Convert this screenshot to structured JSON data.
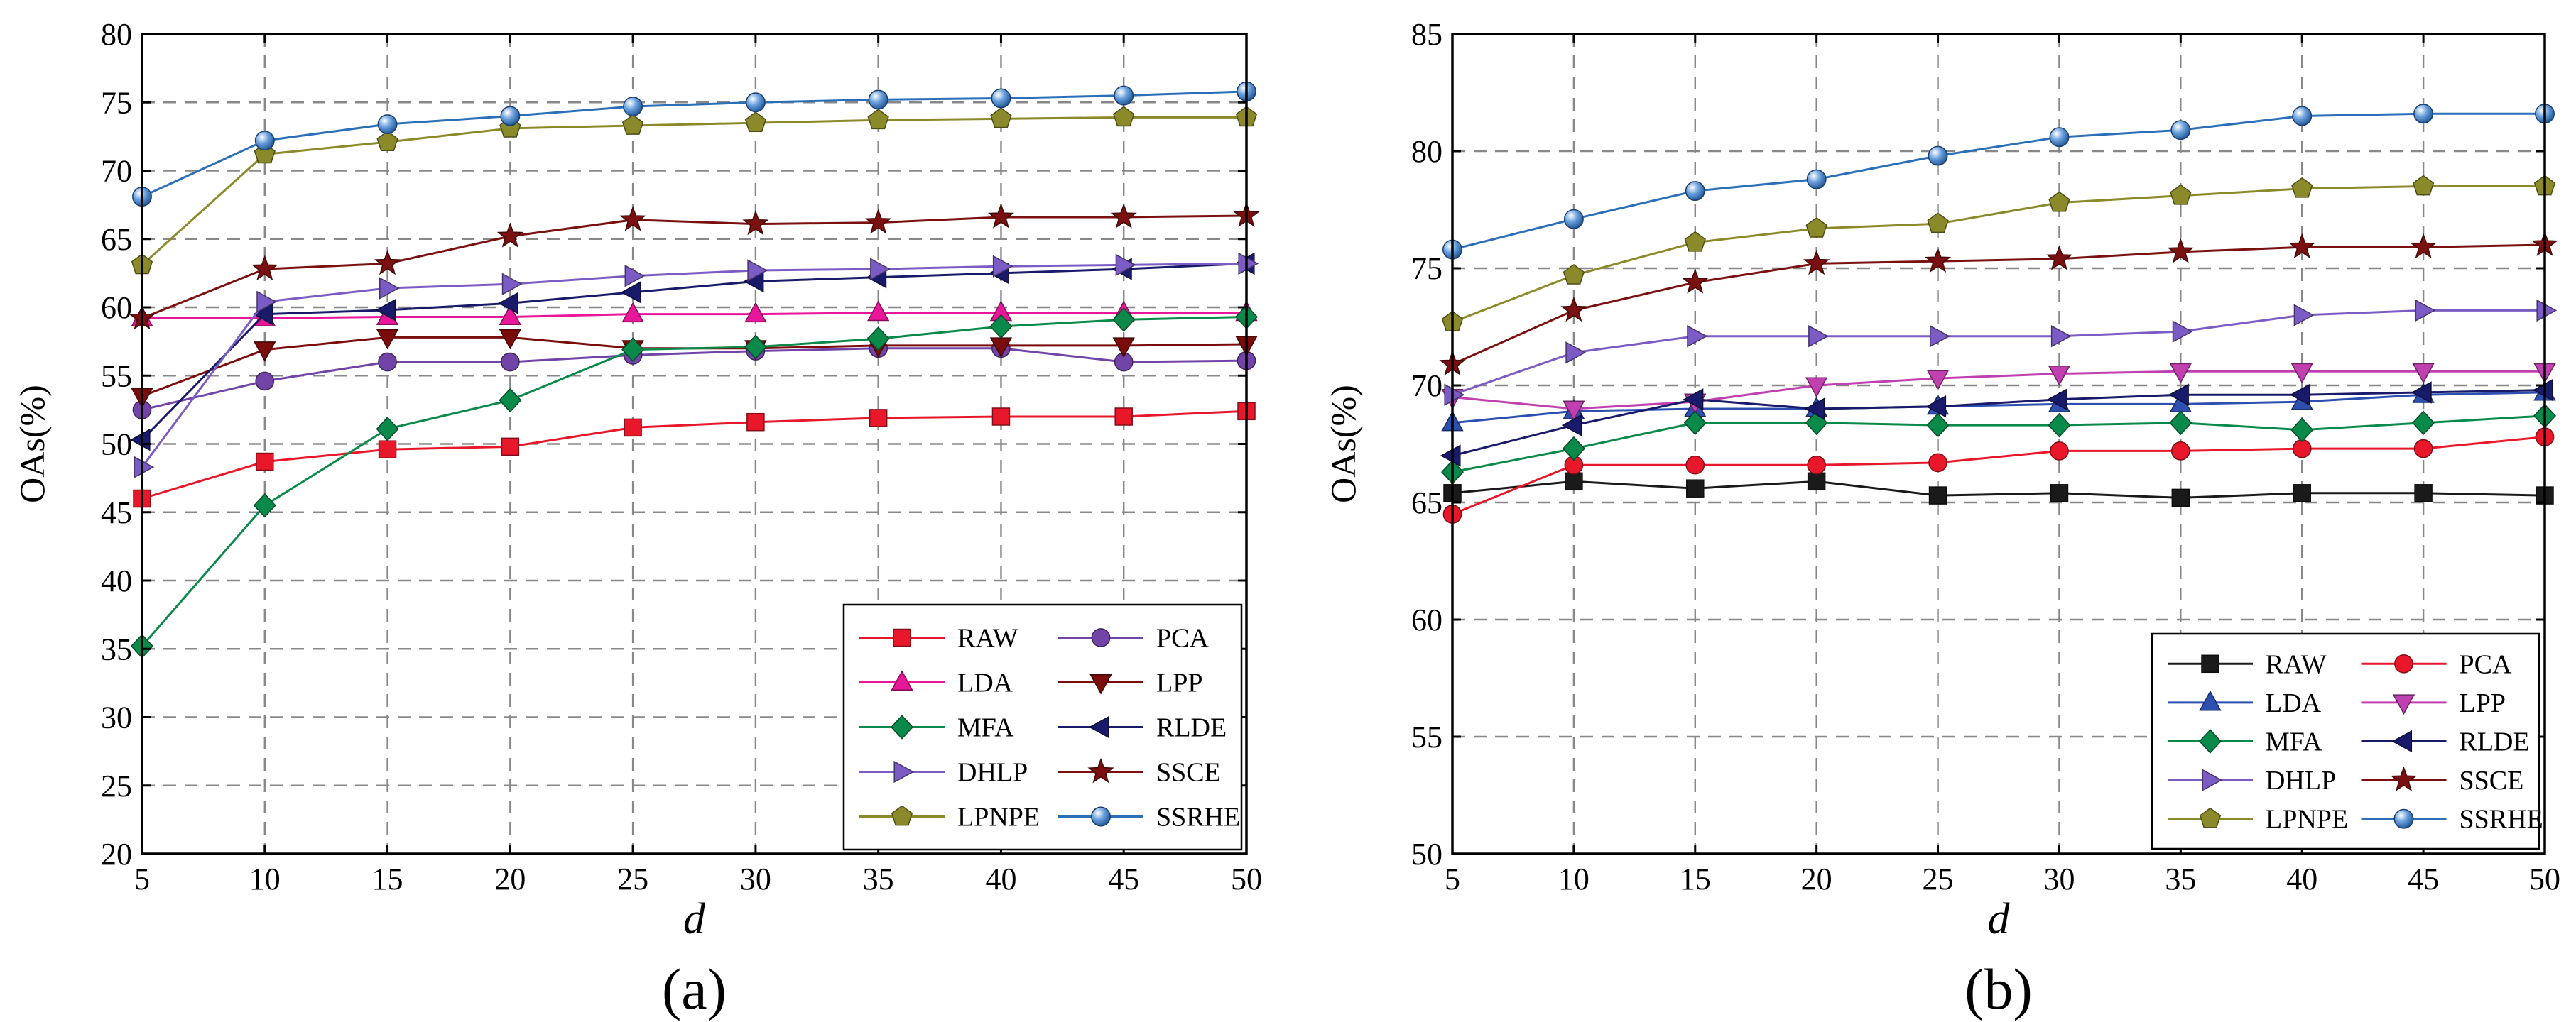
{
  "chart_data": [
    {
      "type": "line",
      "panel_label": "(a)",
      "xlabel": "d",
      "ylabel": "OAs(%)",
      "x": [
        5,
        10,
        15,
        20,
        25,
        30,
        35,
        40,
        45,
        50
      ],
      "xlim": [
        5,
        50
      ],
      "ylim": [
        20,
        80
      ],
      "xticks": [
        "5",
        "10",
        "15",
        "20",
        "25",
        "30",
        "35",
        "40",
        "45",
        "50"
      ],
      "yticks": [
        "20",
        "25",
        "30",
        "35",
        "40",
        "45",
        "50",
        "55",
        "60",
        "65",
        "70",
        "75",
        "80"
      ],
      "grid": true,
      "legend_position": "bottom-right",
      "series": [
        {
          "name": "RAW",
          "color": "#e8182a",
          "marker": "square",
          "values": [
            46.0,
            48.7,
            49.6,
            49.8,
            51.2,
            51.6,
            51.9,
            52.0,
            52.0,
            52.4
          ]
        },
        {
          "name": "PCA",
          "color": "#7244a8",
          "marker": "circle",
          "values": [
            52.5,
            54.6,
            56.0,
            56.0,
            56.5,
            56.8,
            57.0,
            57.0,
            56.0,
            56.1
          ]
        },
        {
          "name": "LDA",
          "color": "#e8179a",
          "marker": "triangle-up",
          "values": [
            59.2,
            59.2,
            59.3,
            59.3,
            59.5,
            59.5,
            59.6,
            59.6,
            59.6,
            59.6
          ]
        },
        {
          "name": "LPP",
          "color": "#7a0c0c",
          "marker": "triangle-down",
          "values": [
            53.5,
            56.9,
            57.8,
            57.8,
            57.0,
            57.0,
            57.2,
            57.2,
            57.2,
            57.3
          ]
        },
        {
          "name": "MFA",
          "color": "#0a8a4a",
          "marker": "diamond",
          "values": [
            35.2,
            45.5,
            51.1,
            53.2,
            56.9,
            57.1,
            57.7,
            58.6,
            59.1,
            59.3
          ]
        },
        {
          "name": "RLDE",
          "color": "#1a1a6a",
          "marker": "triangle-left",
          "values": [
            50.3,
            59.5,
            59.8,
            60.3,
            61.1,
            61.9,
            62.2,
            62.5,
            62.8,
            63.2
          ]
        },
        {
          "name": "DHLP",
          "color": "#7b5cc4",
          "marker": "triangle-right",
          "values": [
            48.3,
            60.4,
            61.4,
            61.7,
            62.3,
            62.7,
            62.8,
            63.0,
            63.1,
            63.2
          ]
        },
        {
          "name": "SSCE",
          "color": "#7a1010",
          "marker": "star",
          "values": [
            59.2,
            62.8,
            63.2,
            65.2,
            66.4,
            66.1,
            66.2,
            66.6,
            66.6,
            66.7
          ]
        },
        {
          "name": "LPNPE",
          "color": "#8a8a2a",
          "marker": "pentagon",
          "values": [
            63.1,
            71.2,
            72.1,
            73.1,
            73.3,
            73.5,
            73.7,
            73.8,
            73.9,
            73.9
          ]
        },
        {
          "name": "SSRHE",
          "color": "#2a6fb8",
          "marker": "sphere",
          "values": [
            68.1,
            72.2,
            73.4,
            74.0,
            74.7,
            75.0,
            75.2,
            75.3,
            75.5,
            75.8
          ]
        }
      ]
    },
    {
      "type": "line",
      "panel_label": "(b)",
      "xlabel": "d",
      "ylabel": "OAs(%)",
      "x": [
        5,
        10,
        15,
        20,
        25,
        30,
        35,
        40,
        45,
        50
      ],
      "xlim": [
        5,
        50
      ],
      "ylim": [
        50,
        85
      ],
      "xticks": [
        "5",
        "10",
        "15",
        "20",
        "25",
        "30",
        "35",
        "40",
        "45",
        "50"
      ],
      "yticks": [
        "50",
        "55",
        "60",
        "65",
        "70",
        "75",
        "80",
        "85"
      ],
      "grid": true,
      "legend_position": "bottom-right",
      "series": [
        {
          "name": "RAW",
          "color": "#1a1a1a",
          "marker": "square",
          "values": [
            65.4,
            65.9,
            65.6,
            65.9,
            65.3,
            65.4,
            65.2,
            65.4,
            65.4,
            65.3
          ]
        },
        {
          "name": "PCA",
          "color": "#e8182a",
          "marker": "circle",
          "values": [
            64.5,
            66.6,
            66.6,
            66.6,
            66.7,
            67.2,
            67.2,
            67.3,
            67.3,
            67.8
          ]
        },
        {
          "name": "LDA",
          "color": "#2d4fb0",
          "marker": "triangle-up",
          "values": [
            68.4,
            68.9,
            69.0,
            69.0,
            69.1,
            69.2,
            69.2,
            69.3,
            69.6,
            69.7
          ]
        },
        {
          "name": "LPP",
          "color": "#c040b0",
          "marker": "triangle-down",
          "values": [
            69.5,
            69.0,
            69.3,
            70.0,
            70.3,
            70.5,
            70.6,
            70.6,
            70.6,
            70.6
          ]
        },
        {
          "name": "MFA",
          "color": "#0a8a4a",
          "marker": "diamond",
          "values": [
            66.3,
            67.3,
            68.4,
            68.4,
            68.3,
            68.3,
            68.4,
            68.1,
            68.4,
            68.7
          ]
        },
        {
          "name": "RLDE",
          "color": "#1a1a6a",
          "marker": "triangle-left",
          "values": [
            67.0,
            68.3,
            69.4,
            69.0,
            69.1,
            69.4,
            69.6,
            69.6,
            69.7,
            69.8
          ]
        },
        {
          "name": "DHLP",
          "color": "#7b5cc4",
          "marker": "triangle-right",
          "values": [
            69.6,
            71.4,
            72.1,
            72.1,
            72.1,
            72.1,
            72.3,
            73.0,
            73.2,
            73.2
          ]
        },
        {
          "name": "SSCE",
          "color": "#7a1010",
          "marker": "star",
          "values": [
            70.9,
            73.2,
            74.4,
            75.2,
            75.3,
            75.4,
            75.7,
            75.9,
            75.9,
            76.0
          ]
        },
        {
          "name": "LPNPE",
          "color": "#8a8a2a",
          "marker": "pentagon",
          "values": [
            72.7,
            74.7,
            76.1,
            76.7,
            76.9,
            77.8,
            78.1,
            78.4,
            78.5,
            78.5
          ]
        },
        {
          "name": "SSRHE",
          "color": "#2a6fb8",
          "marker": "sphere",
          "values": [
            75.8,
            77.1,
            78.3,
            78.8,
            79.8,
            80.6,
            80.9,
            81.5,
            81.6,
            81.6
          ]
        }
      ]
    }
  ]
}
